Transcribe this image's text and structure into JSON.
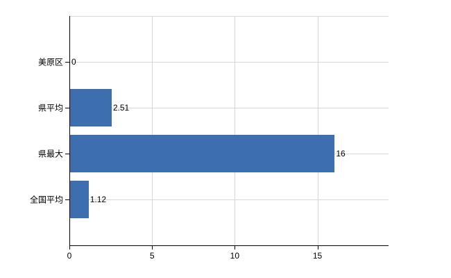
{
  "chart_data": {
    "type": "bar",
    "orientation": "horizontal",
    "title": "",
    "xlabel": "",
    "ylabel": "",
    "categories": [
      "美原区",
      "県平均",
      "県最大",
      "全国平均"
    ],
    "values": [
      0,
      2.51,
      16,
      1.12
    ],
    "value_labels": [
      "0",
      "2.51",
      "16",
      "1.12"
    ],
    "x_ticks": [
      0,
      5,
      10,
      15
    ],
    "x_tick_labels": [
      "0",
      "5",
      "10",
      "15"
    ],
    "xlim": [
      0,
      19.3
    ],
    "grid": true,
    "legend": false,
    "colors": {
      "bar": "#3d6fae",
      "gridline": "#d3dad3",
      "axis": "#000000",
      "text": "#000000",
      "background": "#ffffff"
    }
  }
}
